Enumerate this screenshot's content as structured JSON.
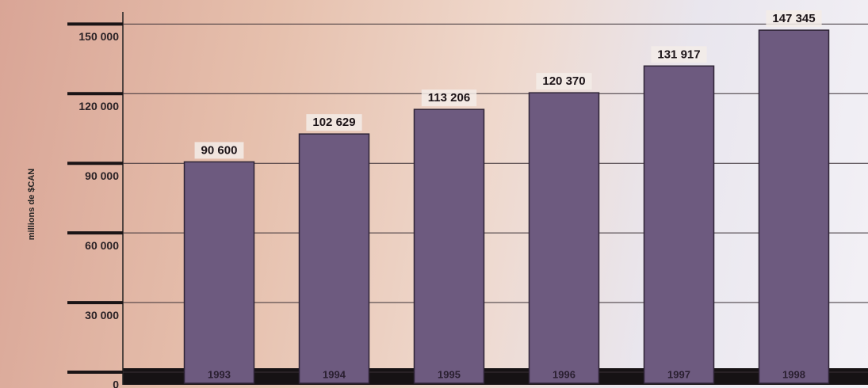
{
  "chart_data": {
    "type": "bar",
    "y_label": "millions de $CAN",
    "categories": [
      "1993",
      "1994",
      "1995",
      "1996",
      "1997",
      "1998"
    ],
    "values": [
      90600,
      102629,
      113206,
      120370,
      131917,
      147345
    ],
    "value_labels": [
      "90 600",
      "102 629",
      "113 206",
      "120 370",
      "131 917",
      "147 345"
    ],
    "color": "#6d5a7f",
    "ylim": [
      0,
      160000
    ],
    "yticks": [
      0,
      {
        "value": 30000,
        "label": "30 000"
      },
      {
        "value": 60000,
        "label": "60 000"
      },
      {
        "value": 90000,
        "label": "90 000"
      },
      {
        "value": 120000,
        "label": "120 000"
      },
      {
        "value": 150000,
        "label": "150 000"
      }
    ],
    "grid": true
  }
}
